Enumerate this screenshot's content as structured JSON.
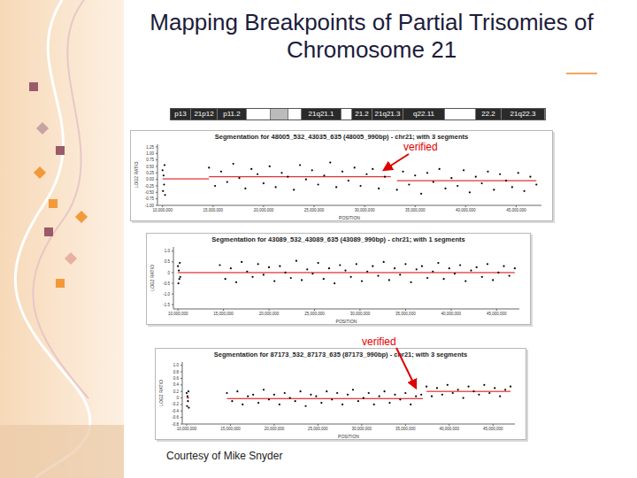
{
  "title": "Mapping Breakpoints of Partial Trisomies of Chromosome 21",
  "ideogram": [
    "p13",
    "21p12",
    "p11.2",
    "21q21.1",
    "21.2",
    "21q21.3",
    "q22.11",
    "22.2",
    "21q22.3"
  ],
  "credit": "Courtesy of Mike Snyder",
  "chart_data": [
    {
      "type": "scatter",
      "title": "Segmentation for 48005_532_43035_635 (48005_990bp) - chr21; with 3 segments",
      "annotation": "verified",
      "x_label": "POSITION",
      "y_label": "LOG2 RATIO",
      "color": "#000000",
      "xlim": [
        9500000,
        47500000
      ],
      "xticks": [
        {
          "value": 10000000,
          "label": "10,000,000"
        },
        {
          "value": 15000000,
          "label": "15,000,000"
        },
        {
          "value": 20000000,
          "label": "20,000,000"
        },
        {
          "value": 25000000,
          "label": "25,000,000"
        },
        {
          "value": 30000000,
          "label": "30,000,000"
        },
        {
          "value": 35000000,
          "label": "35,000,000"
        },
        {
          "value": 40000000,
          "label": "40,000,000"
        },
        {
          "value": 45000000,
          "label": "45,000,000"
        }
      ],
      "ylim": [
        -1.0,
        1.35
      ],
      "yticks": [
        1.25,
        {
          "value": 1,
          "label": "1.00"
        },
        0.75,
        {
          "value": 0.5,
          "label": "0.50"
        },
        0.25,
        {
          "value": 0,
          "label": "0.00"
        },
        -0.25,
        {
          "value": -0.5,
          "label": "-0.50"
        },
        -0.75,
        {
          "value": -1,
          "label": "-1.00"
        }
      ],
      "x": [
        10000000,
        10050000,
        10100000,
        10150000,
        10200000,
        10250000,
        14600000,
        15200000,
        15800000,
        16400000,
        17000000,
        17600000,
        18200000,
        18800000,
        19400000,
        20000000,
        20600000,
        21200000,
        21800000,
        22400000,
        23000000,
        23600000,
        24200000,
        24800000,
        25400000,
        26000000,
        26600000,
        27200000,
        27800000,
        28400000,
        29000000,
        29600000,
        30200000,
        30800000,
        31400000,
        32000000,
        32600000,
        33200000,
        33800000,
        34400000,
        35000000,
        35600000,
        36200000,
        36800000,
        37400000,
        38000000,
        38600000,
        39200000,
        39800000,
        40400000,
        41000000,
        41600000,
        42200000,
        42800000,
        43400000,
        44000000,
        44600000,
        45200000,
        45800000,
        46400000,
        47000000
      ],
      "values": [
        0.35,
        -0.45,
        0.15,
        -0.2,
        0.55,
        -0.6,
        0.45,
        -0.25,
        0.3,
        -0.1,
        0.6,
        0.05,
        -0.35,
        0.4,
        0.2,
        -0.15,
        0.5,
        -0.3,
        0.25,
        0.1,
        -0.4,
        0.55,
        0.0,
        0.35,
        -0.2,
        0.15,
        0.65,
        -0.3,
        0.3,
        -0.05,
        0.45,
        -0.25,
        0.2,
        0.4,
        -0.35,
        0.1,
        0.5,
        -0.4,
        0.3,
        -0.2,
        0.15,
        -0.55,
        0.25,
        -0.1,
        0.4,
        -0.35,
        0.05,
        -0.25,
        0.35,
        -0.5,
        0.1,
        -0.15,
        0.3,
        -0.4,
        0.2,
        -0.05,
        -0.3,
        0.25,
        -0.45,
        0.1,
        -0.2
      ],
      "segments": [
        {
          "start": 10000000,
          "end": 14600000,
          "value": 0.02
        },
        {
          "start": 14600000,
          "end": 32600000,
          "value": 0.1
        },
        {
          "start": 33200000,
          "end": 47000000,
          "value": -0.05
        }
      ]
    },
    {
      "type": "scatter",
      "title": "Segmentation for 43089_532_43089_635 (43089_990bp) - chr21; with 1 segments",
      "x_label": "POSITION",
      "y_label": "LOG2 RATIO",
      "color": "#000000",
      "xlim": [
        9500000,
        47500000
      ],
      "xticks": [
        {
          "value": 10000000,
          "label": "10,000,000"
        },
        {
          "value": 15000000,
          "label": "15,000,000"
        },
        {
          "value": 20000000,
          "label": "20,000,000"
        },
        {
          "value": 25000000,
          "label": "25,000,000"
        },
        {
          "value": 30000000,
          "label": "30,000,000"
        },
        {
          "value": 35000000,
          "label": "35,000,000"
        },
        {
          "value": 40000000,
          "label": "40,000,000"
        },
        {
          "value": 45000000,
          "label": "45,000,000"
        }
      ],
      "ylim": [
        -1.7,
        1.2
      ],
      "yticks": [
        {
          "value": 1,
          "label": "1.0"
        },
        0.5,
        0,
        -0.5,
        {
          "value": -1,
          "label": "-1.0"
        },
        -1.5
      ],
      "x": [
        10000000,
        10050000,
        10100000,
        10150000,
        10200000,
        10250000,
        14600000,
        15200000,
        15800000,
        16400000,
        17000000,
        17600000,
        18200000,
        18800000,
        19400000,
        20000000,
        20600000,
        21200000,
        21800000,
        22400000,
        23000000,
        23600000,
        24200000,
        24800000,
        25400000,
        26000000,
        26600000,
        27200000,
        27800000,
        28400000,
        29000000,
        29600000,
        30200000,
        30800000,
        31400000,
        32000000,
        32600000,
        33200000,
        33800000,
        34400000,
        35000000,
        35600000,
        36200000,
        36800000,
        37400000,
        38000000,
        38600000,
        39200000,
        39800000,
        40400000,
        41000000,
        41600000,
        42200000,
        42800000,
        43400000,
        44000000,
        44600000,
        45200000,
        45800000,
        46400000,
        47000000
      ],
      "values": [
        0.3,
        -0.5,
        0.1,
        -0.3,
        0.45,
        -0.2,
        0.35,
        -0.3,
        0.2,
        -0.45,
        0.5,
        0.05,
        -0.2,
        0.4,
        -0.1,
        0.25,
        -0.4,
        0.3,
        0.0,
        -0.25,
        0.55,
        -0.35,
        0.15,
        -0.05,
        0.45,
        -0.3,
        0.2,
        -0.5,
        0.35,
        0.1,
        -0.2,
        0.4,
        -0.4,
        0.05,
        0.3,
        -0.15,
        0.5,
        -0.35,
        0.2,
        -0.1,
        0.4,
        -0.45,
        0.15,
        0.3,
        -0.25,
        0.05,
        0.45,
        -0.3,
        0.2,
        -0.05,
        0.35,
        -0.4,
        0.1,
        0.25,
        -0.2,
        0.4,
        -0.35,
        0.0,
        0.3,
        -0.15,
        0.2
      ],
      "segments": [
        {
          "start": 10000000,
          "end": 47000000,
          "value": 0.0
        }
      ]
    },
    {
      "type": "scatter",
      "title": "Segmentation for 87173_532_87173_635 (87173_990bp) - chr21; with 3 segments",
      "annotation": "verified",
      "x_label": "POSITION",
      "y_label": "LOG2 RATIO",
      "color": "#000000",
      "xlim": [
        9500000,
        47500000
      ],
      "xticks": [
        {
          "value": 10000000,
          "label": "10,000,000"
        },
        {
          "value": 15000000,
          "label": "15,000,000"
        },
        {
          "value": 20000000,
          "label": "20,000,000"
        },
        {
          "value": 25000000,
          "label": "25,000,000"
        },
        {
          "value": 30000000,
          "label": "30,000,000"
        },
        {
          "value": 35000000,
          "label": "35,000,000"
        },
        {
          "value": 40000000,
          "label": "40,000,000"
        },
        {
          "value": 45000000,
          "label": "45,000,000"
        }
      ],
      "ylim": [
        -0.8,
        1.1
      ],
      "yticks": [
        {
          "value": 1,
          "label": "1.0"
        },
        0.8,
        0.6,
        0.4,
        0.2,
        0,
        -0.2,
        -0.4,
        -0.6,
        -0.8
      ],
      "x": [
        10000000,
        10050000,
        10100000,
        10150000,
        10200000,
        10250000,
        14600000,
        15200000,
        15800000,
        16400000,
        17000000,
        17600000,
        18200000,
        18800000,
        19400000,
        20000000,
        20600000,
        21200000,
        21800000,
        22400000,
        23000000,
        23600000,
        24200000,
        24800000,
        25400000,
        26000000,
        26600000,
        27200000,
        27800000,
        28400000,
        29000000,
        29600000,
        30200000,
        30800000,
        31400000,
        32000000,
        32600000,
        33200000,
        33800000,
        34400000,
        35000000,
        35600000,
        36200000,
        36800000,
        37400000,
        38000000,
        38600000,
        39200000,
        39800000,
        40400000,
        41000000,
        41600000,
        42200000,
        42800000,
        43400000,
        44000000,
        44600000,
        45200000,
        45800000,
        46400000,
        47000000
      ],
      "values": [
        0.15,
        -0.25,
        0.05,
        -0.1,
        0.2,
        -0.3,
        0.15,
        -0.1,
        0.2,
        -0.2,
        0.05,
        0.1,
        -0.15,
        0.25,
        -0.05,
        0.1,
        -0.2,
        0.15,
        0.0,
        -0.1,
        0.2,
        -0.25,
        0.1,
        0.05,
        -0.15,
        0.2,
        -0.05,
        0.15,
        -0.2,
        0.1,
        0.25,
        -0.1,
        0.0,
        0.15,
        -0.2,
        0.05,
        0.2,
        -0.15,
        0.1,
        -0.05,
        0.15,
        -0.2,
        0.05,
        0.1,
        0.35,
        0.05,
        0.3,
        0.1,
        0.4,
        0.15,
        0.25,
        0.0,
        0.35,
        0.2,
        0.1,
        0.4,
        0.15,
        0.3,
        0.05,
        0.25,
        0.35
      ],
      "segments": [
        {
          "start": 10000000,
          "end": 10300000,
          "value": 0.0
        },
        {
          "start": 14600000,
          "end": 37000000,
          "value": -0.02
        },
        {
          "start": 37400000,
          "end": 47000000,
          "value": 0.2
        }
      ]
    }
  ]
}
